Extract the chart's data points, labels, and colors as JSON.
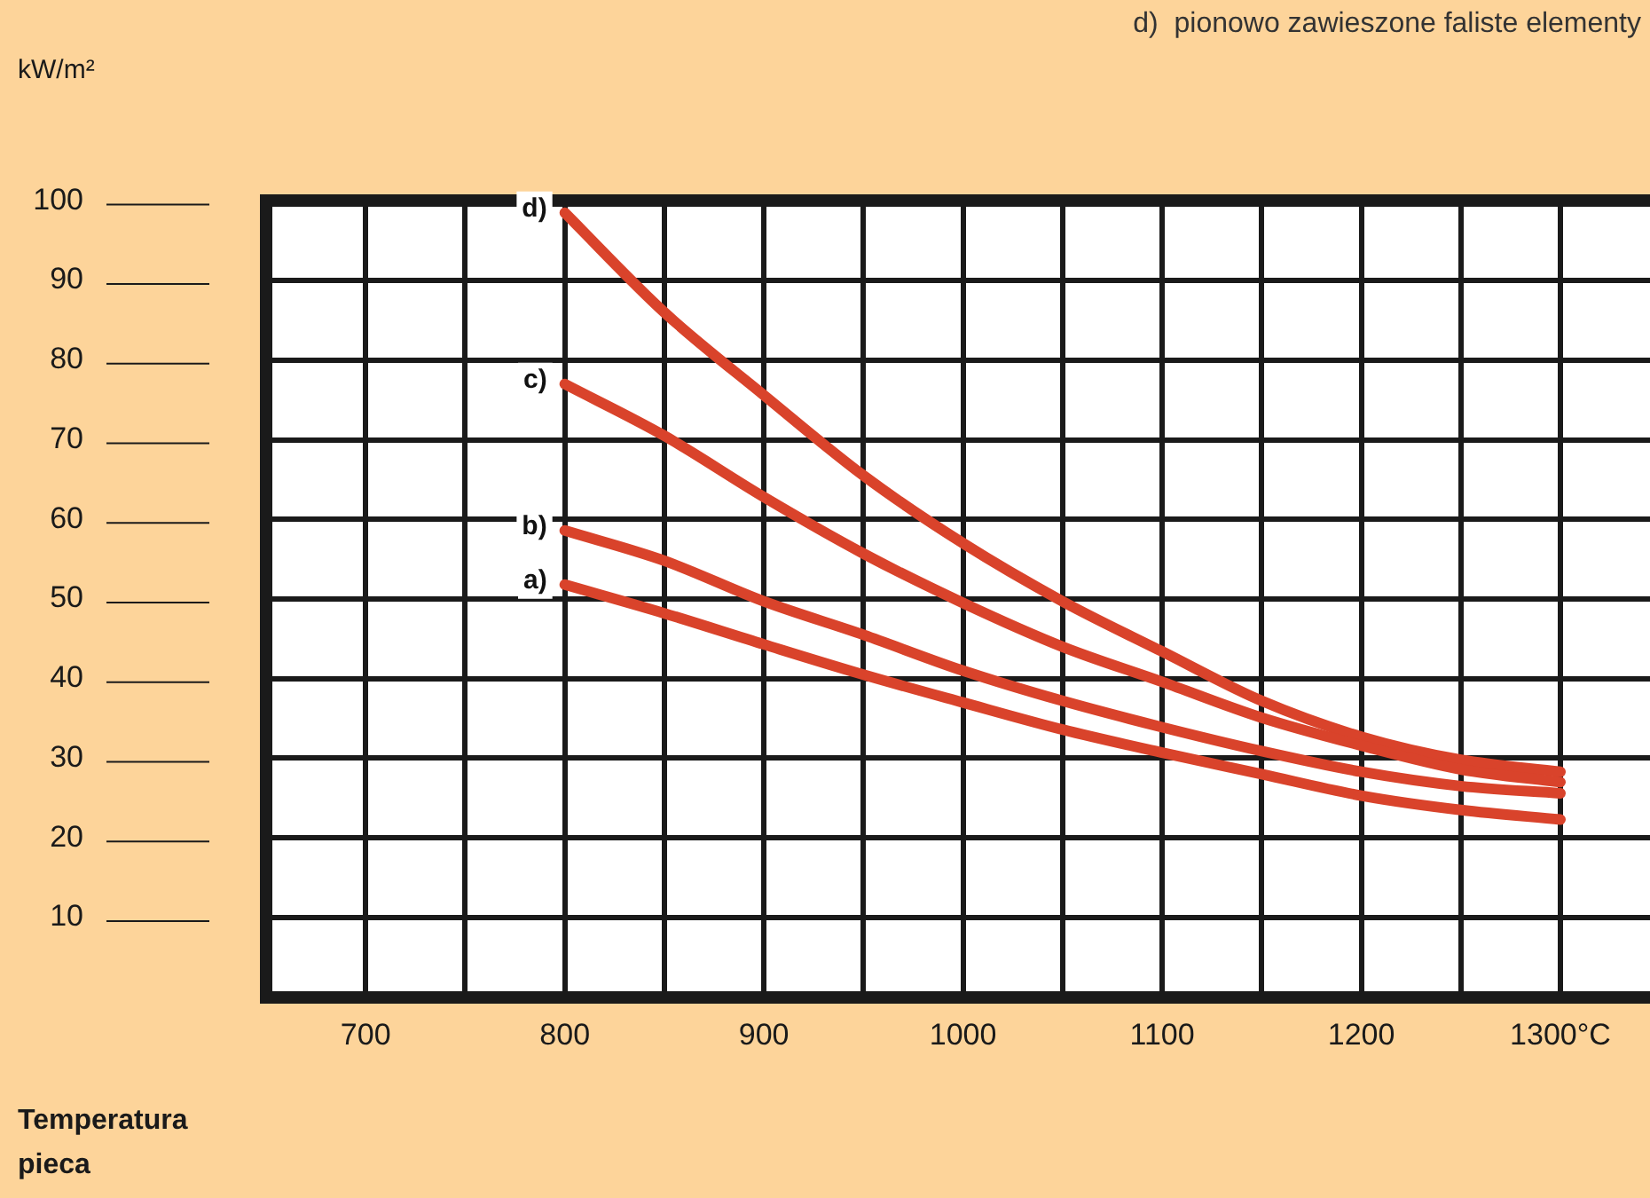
{
  "chart_data": {
    "type": "line",
    "ylabel": "kW/m²",
    "xlabel": "Temperatura pieca",
    "annotations": [
      "d)  pionowo zawieszone faliste elementy"
    ],
    "x": [
      800,
      850,
      900,
      950,
      1000,
      1050,
      1100,
      1150,
      1200,
      1250,
      1300
    ],
    "series": [
      {
        "name": "a)",
        "color": "#d9432b",
        "values": [
          51.8,
          48.2,
          44.3,
          40.5,
          37,
          33.6,
          30.7,
          28,
          25.3,
          23.5,
          22.3
        ]
      },
      {
        "name": "b)",
        "color": "#d9432b",
        "values": [
          58.6,
          54.8,
          49.7,
          45.5,
          41,
          37.2,
          33.9,
          30.9,
          28.3,
          26.5,
          25.6
        ]
      },
      {
        "name": "c)",
        "color": "#d9432b",
        "values": [
          77,
          70.5,
          62.8,
          55.7,
          49.5,
          44,
          39.6,
          35.1,
          31.6,
          28.6,
          27
        ]
      },
      {
        "name": "d)",
        "color": "#d9432b",
        "values": [
          98.5,
          86,
          75.6,
          65.5,
          57,
          49.7,
          43.4,
          37.2,
          32.7,
          29.8,
          28.3
        ]
      }
    ],
    "xlim": [
      650,
      1345
    ],
    "xticks": [
      {
        "value": 650,
        "label": null
      },
      700,
      {
        "value": 750,
        "label": null
      },
      800,
      {
        "value": 850,
        "label": null
      },
      900,
      {
        "value": 950,
        "label": null
      },
      1000,
      {
        "value": 1050,
        "label": null
      },
      1100,
      {
        "value": 1150,
        "label": null
      },
      1200,
      {
        "value": 1250,
        "label": null
      },
      {
        "value": 1300,
        "label": "1300°C"
      }
    ],
    "ylim": [
      0,
      100
    ],
    "yticks": [
      10,
      20,
      30,
      40,
      50,
      60,
      70,
      80,
      90,
      100
    ],
    "grid": true,
    "legend": false,
    "marker": "none",
    "line_style": "solid"
  }
}
